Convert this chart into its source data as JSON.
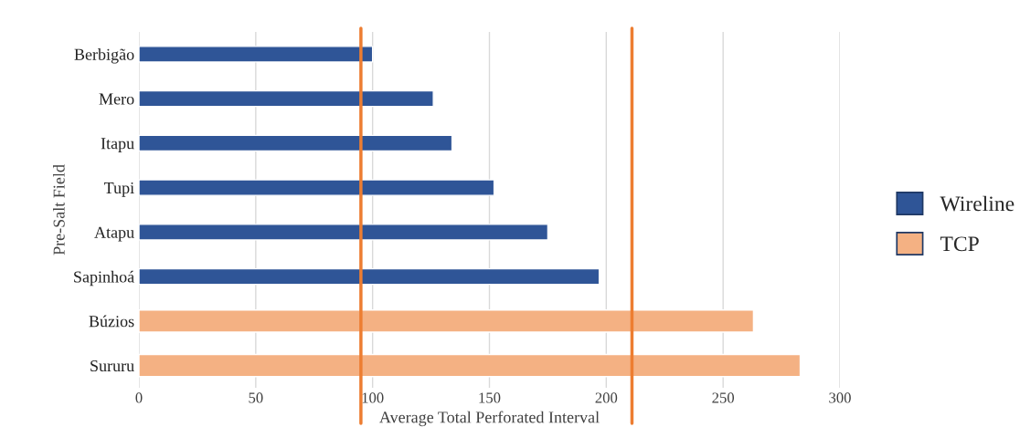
{
  "chart_data": {
    "type": "bar",
    "orientation": "horizontal",
    "xlabel": "Average Total Perforated Interval",
    "ylabel": "Pre-Salt Field",
    "categories": [
      "Berbigão",
      "Mero",
      "Itapu",
      "Tupi",
      "Atapu",
      "Sapinhoá",
      "Búzios",
      "Sururu"
    ],
    "series": [
      {
        "name": "Wireline",
        "color": "#2f5597",
        "values": [
          100,
          126,
          134,
          152,
          175,
          197,
          null,
          null
        ]
      },
      {
        "name": "TCP",
        "color": "#f4b183",
        "values": [
          null,
          null,
          null,
          null,
          null,
          null,
          263,
          283
        ]
      }
    ],
    "xlim": [
      0,
      300
    ],
    "xticks": [
      0,
      50,
      100,
      150,
      200,
      250,
      300
    ],
    "grid": "x",
    "legend": "right",
    "ref_lines": [
      {
        "axis": "x",
        "value": 95,
        "color": "#ed7d31"
      },
      {
        "axis": "x",
        "value": 211,
        "color": "#ed7d31"
      }
    ]
  }
}
